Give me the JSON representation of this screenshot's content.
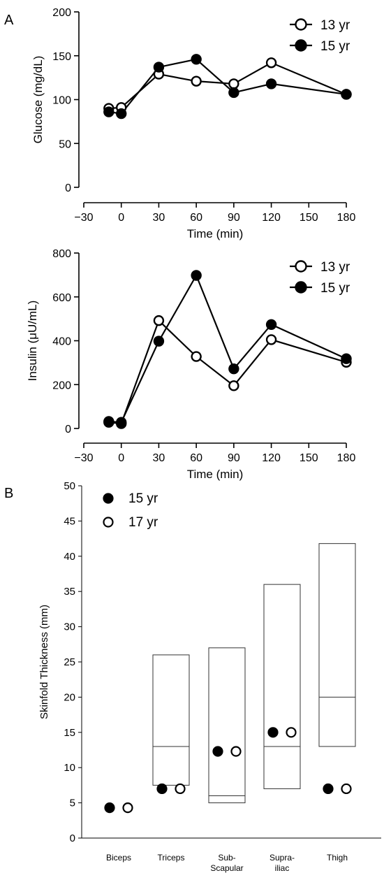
{
  "panel_labels": {
    "a": "A",
    "b": "B"
  },
  "chart_data": [
    {
      "type": "line",
      "panel": "A",
      "xlabel": "Time  (min)",
      "ylabel": "Glucose (mg/dL)",
      "xlim": [
        -30,
        180
      ],
      "ylim": [
        0,
        200
      ],
      "xticks": [
        -30,
        0,
        30,
        60,
        90,
        120,
        150,
        180
      ],
      "xtick_labels": [
        "−30",
        "0",
        "30",
        "60",
        "90",
        "120",
        "150",
        "180"
      ],
      "yticks": [
        0,
        50,
        100,
        150,
        200
      ],
      "legend_position": "top-right",
      "series": [
        {
          "name": "13 yr",
          "marker": "open-circle",
          "x": [
            -10,
            0,
            30,
            60,
            90,
            120,
            180
          ],
          "y": [
            90,
            91,
            129,
            121,
            118,
            142,
            106
          ]
        },
        {
          "name": "15 yr",
          "marker": "filled-circle",
          "x": [
            -10,
            0,
            30,
            60,
            90,
            120,
            180
          ],
          "y": [
            86,
            84,
            137,
            146,
            108,
            118,
            106
          ]
        }
      ]
    },
    {
      "type": "line",
      "panel": "A",
      "xlabel": "Time  (min)",
      "ylabel": "Insulin (μU/mL)",
      "xlim": [
        -30,
        180
      ],
      "ylim": [
        0,
        800
      ],
      "xticks": [
        -30,
        0,
        30,
        60,
        90,
        120,
        150,
        180
      ],
      "xtick_labels": [
        "−30",
        "0",
        "30",
        "60",
        "90",
        "120",
        "150",
        "180"
      ],
      "yticks": [
        0,
        200,
        400,
        600,
        800
      ],
      "legend_position": "top-right",
      "series": [
        {
          "name": "13 yr",
          "marker": "open-circle",
          "x": [
            -10,
            0,
            30,
            60,
            90,
            120,
            180
          ],
          "y": [
            28,
            22,
            492,
            328,
            195,
            405,
            302
          ]
        },
        {
          "name": "15 yr",
          "marker": "filled-circle",
          "x": [
            -10,
            0,
            30,
            60,
            90,
            120,
            180
          ],
          "y": [
            32,
            28,
            398,
            698,
            272,
            474,
            318
          ]
        }
      ]
    },
    {
      "type": "scatter",
      "panel": "B",
      "ylabel": "Skinfold Thickness (mm)",
      "ylim": [
        0,
        50
      ],
      "yticks": [
        0,
        5,
        10,
        15,
        20,
        25,
        30,
        35,
        40,
        45,
        50
      ],
      "categories": [
        "Biceps",
        "Triceps",
        "Sub-|Scapular",
        "Supra-|iliac",
        "Thigh"
      ],
      "legend_position": "top-left",
      "series": [
        {
          "name": "15 yr",
          "marker": "filled-circle",
          "values": [
            4.3,
            7.0,
            12.3,
            15.0,
            7.0
          ]
        },
        {
          "name": "17 yr",
          "marker": "open-circle",
          "values": [
            4.3,
            7.0,
            12.3,
            15.0,
            7.0
          ]
        }
      ],
      "reference_ranges": [
        null,
        {
          "low": 7.5,
          "median": 13,
          "high": 26
        },
        {
          "low": 5,
          "median": 6,
          "high": 27
        },
        {
          "low": 7,
          "median": 13,
          "high": 36
        },
        {
          "low": 13,
          "median": 20,
          "high": 41.8
        }
      ]
    }
  ]
}
